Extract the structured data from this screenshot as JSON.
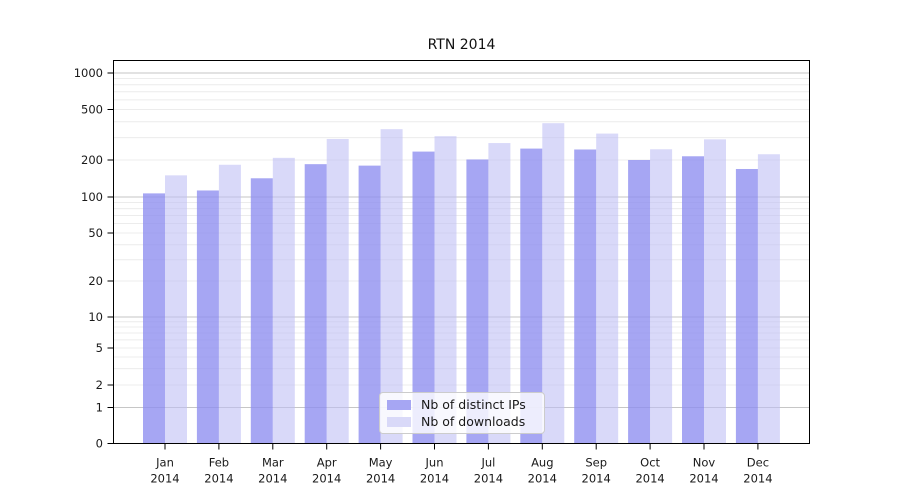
{
  "chart_data": {
    "type": "bar",
    "title": "RTN 2014",
    "categories": [
      "Jan",
      "Feb",
      "Mar",
      "Apr",
      "May",
      "Jun",
      "Jul",
      "Aug",
      "Sep",
      "Oct",
      "Nov",
      "Dec"
    ],
    "x_year_label": "2014",
    "series": [
      {
        "name": "Nb of distinct IPs",
        "color": "#a6a6f3",
        "fill": "rgba(141,141,240,0.78)",
        "values": [
          107,
          113,
          142,
          185,
          180,
          233,
          202,
          246,
          242,
          200,
          214,
          169
        ]
      },
      {
        "name": "Nb of downloads",
        "color": "#d9d9f8",
        "fill": "rgba(189,189,244,0.58)",
        "values": [
          150,
          183,
          208,
          293,
          350,
          308,
          272,
          390,
          323,
          243,
          291,
          222
        ]
      }
    ],
    "y_ticks": [
      1000,
      500,
      200,
      100,
      50,
      20,
      10,
      5,
      2,
      1,
      0
    ],
    "ylim": [
      0,
      1000
    ],
    "yscale": "log-like (1-2-5 ticks with zero baseline)",
    "grid": "on",
    "grid_major_color": "#c6c6c6",
    "grid_minor_color": "#ececec",
    "axis_color": "#000000",
    "legend_position": "bottom-center-inside"
  }
}
